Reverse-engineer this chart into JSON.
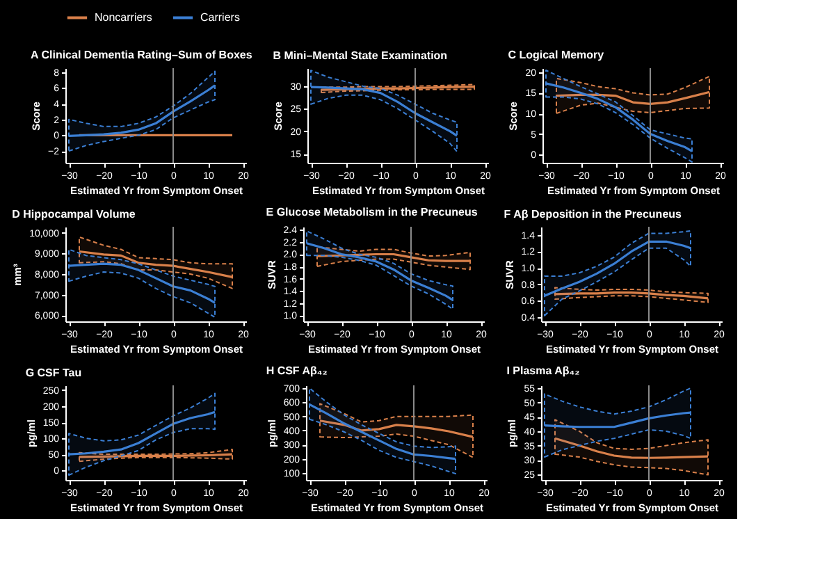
{
  "chart_data": [
    {
      "type": "line",
      "title": "A  Clinical Dementia Rating–Sum of Boxes",
      "xlabel": "Estimated Yr from Symptom Onset",
      "ylabel": "Score",
      "xlim": [
        -31,
        21
      ],
      "xticks": [
        -30,
        -20,
        -10,
        0,
        10,
        20
      ],
      "ylim": [
        -3.5,
        8.5
      ],
      "yticks": [
        -2,
        0,
        2,
        4,
        6,
        8
      ],
      "legend": "top",
      "grid": false,
      "ref_lines": [
        {
          "axis": "x",
          "value": 0,
          "color": "#8a8a8a"
        }
      ],
      "series": [
        {
          "name": "Noncarriers",
          "color": "#d9804a",
          "x": [
            -27,
            -20,
            -15,
            -10,
            -5,
            0,
            5,
            10,
            17
          ],
          "values": [
            0,
            0,
            0,
            0,
            0,
            0,
            0,
            0,
            0
          ]
        },
        {
          "name": "Carriers",
          "color": "#3b7fd4",
          "x": [
            -30,
            -25,
            -20,
            -15,
            -10,
            -5,
            0,
            5,
            10,
            12
          ],
          "values": [
            -0.1,
            0,
            0.1,
            0.3,
            0.7,
            1.5,
            3.0,
            4.3,
            5.7,
            6.3
          ],
          "lower": [
            -2,
            -1.3,
            -0.8,
            -0.4,
            0,
            0.7,
            2.2,
            3.2,
            4.2,
            4.5
          ],
          "upper": [
            2,
            1.5,
            1.1,
            1.1,
            1.5,
            2.3,
            3.7,
            5.3,
            7.3,
            8.1
          ]
        }
      ]
    },
    {
      "type": "line",
      "title": "B  Mini–Mental State Examination",
      "xlabel": "Estimated Yr from Symptom Onset",
      "ylabel": "Score",
      "xlim": [
        -31,
        21
      ],
      "xticks": [
        -30,
        -20,
        -10,
        0,
        10,
        20
      ],
      "ylim": [
        13,
        34
      ],
      "yticks": [
        15,
        20,
        25,
        30
      ],
      "grid": false,
      "ref_lines": [
        {
          "axis": "x",
          "value": 0,
          "color": "#8a8a8a"
        }
      ],
      "series": [
        {
          "color": "#d9804a",
          "x": [
            -27,
            -20,
            -15,
            -10,
            -5,
            0,
            5,
            10,
            17
          ],
          "values": [
            29.2,
            29.3,
            29.4,
            29.5,
            29.5,
            29.6,
            29.7,
            29.8,
            29.9
          ],
          "lower": [
            28.6,
            28.9,
            29.0,
            29.1,
            29.2,
            29.2,
            29.3,
            29.3,
            29.3
          ],
          "upper": [
            29.8,
            29.8,
            29.9,
            29.9,
            29.9,
            30,
            30.1,
            30.2,
            30.4
          ]
        },
        {
          "color": "#3b7fd4",
          "x": [
            -30,
            -25,
            -20,
            -15,
            -10,
            -5,
            0,
            5,
            10,
            12
          ],
          "values": [
            29.8,
            29.7,
            29.5,
            29.3,
            28.5,
            26.5,
            24,
            22,
            20,
            19
          ],
          "lower": [
            26,
            27.3,
            28,
            28,
            27,
            25,
            22.5,
            20,
            17.3,
            15.5
          ],
          "upper": [
            33.5,
            32,
            31,
            30,
            29.5,
            28,
            26,
            24,
            22.5,
            22
          ]
        }
      ]
    },
    {
      "type": "line",
      "title": "C  Logical Memory",
      "xlabel": "Estimated Yr from Symptom Onset",
      "ylabel": "Score",
      "xlim": [
        -31,
        21
      ],
      "xticks": [
        -30,
        -20,
        -10,
        0,
        10,
        20
      ],
      "ylim": [
        -2,
        21
      ],
      "yticks": [
        0,
        5,
        10,
        15,
        20
      ],
      "grid": false,
      "ref_lines": [
        {
          "axis": "x",
          "value": 0,
          "color": "#8a8a8a"
        }
      ],
      "series": [
        {
          "color": "#d9804a",
          "x": [
            -27,
            -20,
            -15,
            -10,
            -5,
            0,
            5,
            10,
            17
          ],
          "values": [
            14.3,
            14.5,
            14.5,
            14.3,
            12.7,
            12.3,
            12.7,
            13.7,
            15.2
          ],
          "lower": [
            10,
            12,
            12.5,
            11.5,
            10.5,
            10.2,
            10.7,
            11.2,
            11.3
          ],
          "upper": [
            18.5,
            17.5,
            16.5,
            16,
            15,
            14.5,
            14.7,
            16.3,
            19
          ]
        },
        {
          "color": "#3b7fd4",
          "x": [
            -30,
            -25,
            -20,
            -15,
            -10,
            -5,
            0,
            5,
            10,
            12
          ],
          "values": [
            17.3,
            16.3,
            15,
            13.5,
            11.5,
            8.5,
            5,
            3.3,
            1.8,
            0.8
          ],
          "lower": [
            14,
            14,
            13.5,
            12.3,
            10.2,
            7.3,
            4,
            1.5,
            -0.8,
            -1.8
          ],
          "upper": [
            20.5,
            18.5,
            16.5,
            14.7,
            12.8,
            9.5,
            6,
            5,
            4,
            3.8
          ]
        }
      ]
    },
    {
      "type": "line",
      "title": "D  Hippocampal Volume",
      "xlabel": "Estimated Yr from Symptom Onset",
      "ylabel": "mm³",
      "xlim": [
        -31,
        21
      ],
      "xticks": [
        -30,
        -20,
        -10,
        0,
        10,
        20
      ],
      "ylim": [
        5700,
        10300
      ],
      "yticks": [
        {
          "value": 6000,
          "label": "6,000"
        },
        {
          "value": 7000,
          "label": "7,000"
        },
        {
          "value": 8000,
          "label": "8,000"
        },
        {
          "value": 9000,
          "label": "9,000"
        },
        {
          "value": 10000,
          "label": "10,000"
        }
      ],
      "grid": false,
      "ref_lines": [
        {
          "axis": "x",
          "value": 0,
          "color": "#8a8a8a"
        }
      ],
      "series": [
        {
          "color": "#d9804a",
          "x": [
            -27,
            -20,
            -15,
            -10,
            -5,
            0,
            5,
            10,
            17
          ],
          "values": [
            9100,
            8950,
            8900,
            8550,
            8450,
            8400,
            8250,
            8100,
            7850
          ],
          "lower": [
            8550,
            8600,
            8500,
            8200,
            8200,
            8100,
            8000,
            7800,
            7300
          ],
          "upper": [
            9800,
            9400,
            9200,
            8800,
            8750,
            8700,
            8550,
            8500,
            8500
          ]
        },
        {
          "color": "#3b7fd4",
          "x": [
            -30,
            -25,
            -20,
            -15,
            -10,
            -5,
            0,
            5,
            10,
            12
          ],
          "values": [
            8400,
            8450,
            8500,
            8450,
            8200,
            7800,
            7400,
            7200,
            6800,
            6600
          ],
          "lower": [
            7650,
            7900,
            8100,
            8050,
            7800,
            7300,
            6900,
            6600,
            6100,
            5900
          ],
          "upper": [
            9200,
            8900,
            8800,
            8700,
            8500,
            8200,
            7900,
            7700,
            7500,
            7400
          ]
        }
      ]
    },
    {
      "type": "line",
      "title": "E  Glucose Metabolism in the Precuneus",
      "xlabel": "Estimated Yr from Symptom Onset",
      "ylabel": "SUVR",
      "xlim": [
        -31,
        21
      ],
      "xticks": [
        -30,
        -20,
        -10,
        0,
        10,
        20
      ],
      "ylim": [
        0.9,
        2.45
      ],
      "yticks": [
        {
          "value": 1,
          "label": "1.0"
        },
        1.2,
        1.4,
        1.6,
        1.8,
        {
          "value": 2,
          "label": "2.0"
        },
        2.2,
        2.4
      ],
      "grid": false,
      "ref_lines": [
        {
          "axis": "x",
          "value": 0,
          "color": "#8a8a8a"
        }
      ],
      "series": [
        {
          "color": "#d9804a",
          "x": [
            -27,
            -20,
            -15,
            -10,
            -5,
            0,
            5,
            10,
            17
          ],
          "values": [
            1.97,
            1.98,
            1.99,
            2.0,
            2.0,
            1.95,
            1.9,
            1.89,
            1.89
          ],
          "lower": [
            1.8,
            1.88,
            1.9,
            1.92,
            1.92,
            1.87,
            1.82,
            1.79,
            1.75
          ],
          "upper": [
            2.12,
            2.08,
            2.05,
            2.08,
            2.08,
            2.02,
            1.97,
            1.98,
            2.03
          ]
        },
        {
          "color": "#3b7fd4",
          "x": [
            -30,
            -25,
            -20,
            -15,
            -10,
            -5,
            0,
            5,
            10,
            12
          ],
          "values": [
            2.18,
            2.1,
            2.0,
            1.95,
            1.88,
            1.75,
            1.57,
            1.45,
            1.32,
            1.25
          ],
          "lower": [
            1.98,
            1.98,
            1.95,
            1.9,
            1.82,
            1.65,
            1.48,
            1.35,
            1.18,
            1.1
          ],
          "upper": [
            2.38,
            2.25,
            2.1,
            2.0,
            1.95,
            1.85,
            1.68,
            1.57,
            1.5,
            1.48
          ]
        }
      ]
    },
    {
      "type": "line",
      "title": "F  Aβ Deposition in the Precuneus",
      "xlabel": "Estimated Yr from Symptom Onset",
      "ylabel": "SUVR",
      "xlim": [
        -31,
        21
      ],
      "xticks": [
        -30,
        -20,
        -10,
        0,
        10,
        20
      ],
      "ylim": [
        0.35,
        1.5
      ],
      "yticks": [
        0.4,
        0.6,
        0.8,
        {
          "value": 1,
          "label": "1.0"
        },
        1.2,
        1.4
      ],
      "grid": false,
      "ref_lines": [
        {
          "axis": "x",
          "value": 0,
          "color": "#8a8a8a"
        }
      ],
      "series": [
        {
          "color": "#d9804a",
          "x": [
            -27,
            -20,
            -15,
            -10,
            -5,
            0,
            5,
            10,
            17
          ],
          "values": [
            0.68,
            0.69,
            0.69,
            0.7,
            0.7,
            0.69,
            0.67,
            0.66,
            0.63
          ],
          "lower": [
            0.62,
            0.64,
            0.65,
            0.66,
            0.66,
            0.65,
            0.63,
            0.61,
            0.58
          ],
          "upper": [
            0.76,
            0.74,
            0.73,
            0.74,
            0.74,
            0.73,
            0.71,
            0.7,
            0.69
          ]
        },
        {
          "color": "#3b7fd4",
          "x": [
            -30,
            -25,
            -20,
            -15,
            -10,
            -5,
            0,
            5,
            10,
            12
          ],
          "values": [
            0.66,
            0.75,
            0.83,
            0.93,
            1.05,
            1.2,
            1.32,
            1.32,
            1.27,
            1.24
          ],
          "lower": [
            0.42,
            0.62,
            0.72,
            0.83,
            0.95,
            1.1,
            1.24,
            1.24,
            1.1,
            1.02
          ],
          "upper": [
            0.9,
            0.9,
            0.94,
            1.02,
            1.13,
            1.3,
            1.42,
            1.42,
            1.44,
            1.45
          ]
        }
      ]
    },
    {
      "type": "line",
      "title": "G  CSF Tau",
      "xlabel": "Estimated Yr from Symptom Onset",
      "ylabel": "pg/ml",
      "xlim": [
        -31,
        21
      ],
      "xticks": [
        -30,
        -20,
        -10,
        0,
        10,
        20
      ],
      "ylim": [
        -30,
        265
      ],
      "yticks": [
        0,
        50,
        100,
        150,
        200,
        250
      ],
      "grid": false,
      "ref_lines": [
        {
          "axis": "x",
          "value": 0,
          "color": "#8a8a8a"
        }
      ],
      "series": [
        {
          "color": "#d9804a",
          "x": [
            -27,
            -20,
            -15,
            -10,
            -5,
            0,
            5,
            10,
            17
          ],
          "values": [
            42,
            43,
            44,
            45,
            45,
            45,
            46,
            47,
            50
          ],
          "lower": [
            28,
            35,
            38,
            40,
            40,
            40,
            39,
            38,
            35
          ],
          "upper": [
            55,
            50,
            50,
            50,
            50,
            51,
            52,
            55,
            65
          ]
        },
        {
          "color": "#3b7fd4",
          "x": [
            -30,
            -25,
            -20,
            -15,
            -10,
            -5,
            0,
            5,
            10,
            12
          ],
          "values": [
            50,
            53,
            58,
            65,
            85,
            115,
            145,
            163,
            175,
            182
          ],
          "lower": [
            -15,
            10,
            30,
            45,
            62,
            95,
            118,
            130,
            130,
            128
          ],
          "upper": [
            115,
            100,
            92,
            95,
            110,
            140,
            170,
            195,
            225,
            240
          ]
        }
      ]
    },
    {
      "type": "line",
      "title": "H  CSF Aβ₄₂",
      "xlabel": "Estimated Yr from Symptom Onset",
      "ylabel": "pg/ml",
      "xlim": [
        -31,
        21
      ],
      "xticks": [
        -30,
        -20,
        -10,
        0,
        10,
        20
      ],
      "ylim": [
        50,
        720
      ],
      "yticks": [
        100,
        200,
        300,
        400,
        500,
        600,
        700
      ],
      "grid": false,
      "ref_lines": [
        {
          "axis": "x",
          "value": 0,
          "color": "#8a8a8a"
        }
      ],
      "series": [
        {
          "color": "#d9804a",
          "x": [
            -27,
            -20,
            -15,
            -10,
            -5,
            0,
            5,
            10,
            17
          ],
          "values": [
            470,
            440,
            400,
            410,
            440,
            430,
            415,
            395,
            355
          ],
          "lower": [
            355,
            350,
            355,
            360,
            375,
            360,
            330,
            300,
            210
          ],
          "upper": [
            590,
            520,
            460,
            470,
            500,
            500,
            500,
            500,
            510
          ]
        },
        {
          "color": "#3b7fd4",
          "x": [
            -30,
            -25,
            -20,
            -15,
            -10,
            -5,
            0,
            5,
            10,
            12
          ],
          "values": [
            585,
            520,
            450,
            390,
            330,
            270,
            230,
            220,
            205,
            200
          ],
          "lower": [
            480,
            440,
            390,
            330,
            260,
            210,
            180,
            150,
            110,
            95
          ],
          "upper": [
            700,
            600,
            510,
            440,
            380,
            320,
            290,
            280,
            285,
            290
          ]
        }
      ]
    },
    {
      "type": "line",
      "title": "I  Plasma Aβ₄₂",
      "xlabel": "Estimated Yr from Symptom Onset",
      "ylabel": "pg/ml",
      "xlim": [
        -31,
        21
      ],
      "xticks": [
        -30,
        -20,
        -10,
        0,
        10,
        20
      ],
      "ylim": [
        23,
        56
      ],
      "yticks": [
        25,
        30,
        35,
        40,
        45,
        50,
        55
      ],
      "grid": false,
      "ref_lines": [
        {
          "axis": "x",
          "value": 0,
          "color": "#8a8a8a"
        }
      ],
      "series": [
        {
          "color": "#d9804a",
          "x": [
            -27,
            -20,
            -15,
            -10,
            -5,
            0,
            5,
            10,
            17
          ],
          "values": [
            37.5,
            35,
            33,
            31.5,
            30.8,
            30.7,
            30.8,
            31,
            31.2
          ],
          "lower": [
            32,
            31,
            29.5,
            28.3,
            27.5,
            27.3,
            27,
            26.3,
            24.8
          ],
          "upper": [
            44,
            40,
            36,
            34,
            33.7,
            34,
            35,
            36,
            37
          ]
        },
        {
          "color": "#3b7fd4",
          "x": [
            -30,
            -25,
            -20,
            -15,
            -10,
            -5,
            0,
            5,
            10,
            12
          ],
          "values": [
            42,
            41.7,
            41.5,
            41.5,
            41.5,
            43,
            44.5,
            45.5,
            46.3,
            46.5
          ],
          "lower": [
            31,
            33.5,
            35,
            36.5,
            37.5,
            39,
            40.5,
            40,
            38.5,
            37.5
          ],
          "upper": [
            53,
            50.5,
            48.5,
            47,
            46,
            47,
            48.5,
            51,
            54,
            55
          ]
        }
      ]
    }
  ]
}
